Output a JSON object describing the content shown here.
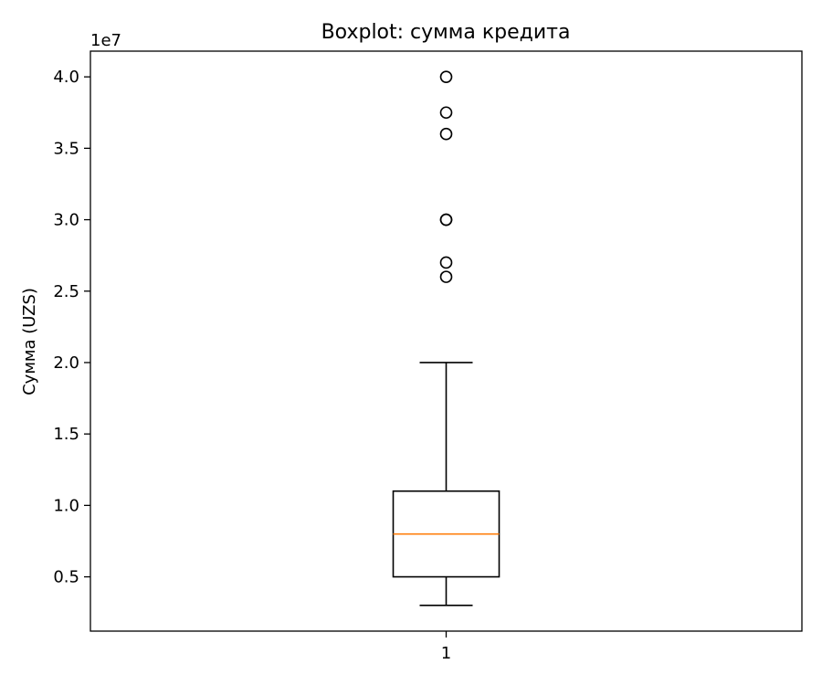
{
  "chart_data": {
    "type": "box",
    "title": "Boxplot: сумма кредита",
    "xlabel": "",
    "ylabel": "Сумма (UZS)",
    "y_offset_label": "1e7",
    "ylim": [
      1200000,
      41800000
    ],
    "yticks": [
      5000000,
      10000000,
      15000000,
      20000000,
      25000000,
      30000000,
      35000000,
      40000000
    ],
    "ytick_labels": [
      "0.5",
      "1.0",
      "1.5",
      "2.0",
      "2.5",
      "3.0",
      "3.5",
      "4.0"
    ],
    "categories": [
      "1"
    ],
    "boxes": [
      {
        "category": "1",
        "whisker_low": 3000000,
        "q1": 5000000,
        "median": 8000000,
        "q3": 11000000,
        "whisker_high": 20000000,
        "outliers": [
          26000000,
          27000000,
          30000000,
          30000000,
          36000000,
          37500000,
          40000000
        ]
      }
    ],
    "grid": false,
    "colors": {
      "box": "#000000",
      "median": "#ff7f0e",
      "outlier": "#000000"
    }
  }
}
